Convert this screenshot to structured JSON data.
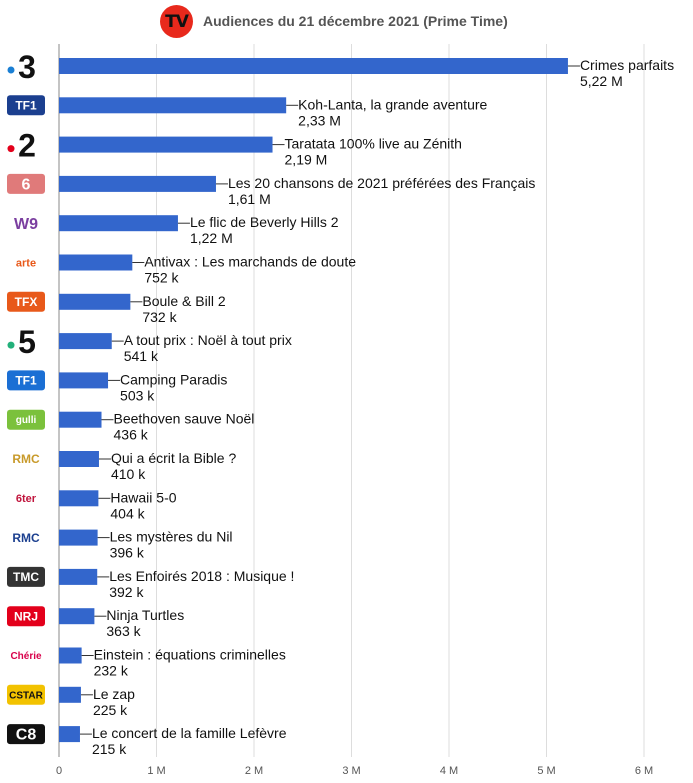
{
  "header": {
    "logo_text": "TV",
    "title": "Audiences du 21 décembre 2021 (Prime Time)"
  },
  "chart_data": {
    "type": "bar",
    "orientation": "horizontal",
    "title": "Audiences du 21 décembre 2021 (Prime Time)",
    "xlim": [
      0,
      6000000
    ],
    "x_ticks": [
      0,
      1000000,
      2000000,
      3000000,
      4000000,
      5000000,
      6000000
    ],
    "x_tick_labels": [
      "0",
      "1 M",
      "2 M",
      "3 M",
      "4 M",
      "5 M",
      "6 M"
    ],
    "grid": true,
    "bar_color": "#3366cc",
    "categories": [
      "France 3",
      "TF1",
      "France 2",
      "M6",
      "W9",
      "Arte",
      "TFX",
      "France 5",
      "TF1 Séries Films",
      "Gulli",
      "RMC Story",
      "6ter",
      "RMC Découverte",
      "TMC",
      "NRJ 12",
      "Chérie 25",
      "CStar",
      "C8"
    ],
    "programs": [
      "Crimes parfaits",
      "Koh-Lanta, la grande aventure",
      "Taratata 100% live au Zénith",
      "Les 20 chansons de 2021 préférées des Français",
      "Le flic de Beverly Hills 2",
      "Antivax : Les marchands de doute",
      "Boule & Bill 2",
      "A tout prix : Noël à tout prix",
      "Camping Paradis",
      "Beethoven sauve Noël",
      "Qui a écrit la Bible ?",
      "Hawaii 5-0",
      "Les mystères du Nil",
      "Les Enfoirés 2018 : Musique !",
      "Ninja Turtles",
      "Einstein : équations criminelles",
      "Le zap",
      "Le concert de la famille Lefèvre"
    ],
    "values": [
      5220000,
      2330000,
      2190000,
      1610000,
      1220000,
      752000,
      732000,
      541000,
      503000,
      436000,
      410000,
      404000,
      396000,
      392000,
      363000,
      232000,
      225000,
      215000
    ],
    "value_labels": [
      "5,22 M",
      "2,33 M",
      "2,19 M",
      "1,61 M",
      "1,22 M",
      "752 k",
      "732 k",
      "541 k",
      "503 k",
      "436 k",
      "410 k",
      "404 k",
      "396 k",
      "392 k",
      "363 k",
      "232 k",
      "225 k",
      "215 k"
    ],
    "channel_logos": [
      {
        "text": "•3",
        "color": "#111111",
        "accent": "#1a7fd4"
      },
      {
        "text": "TF1",
        "color": "#ffffff",
        "bg": "#1b3f8f"
      },
      {
        "text": "•2",
        "color": "#111111",
        "accent": "#e3001b"
      },
      {
        "text": "6",
        "color": "#ffffff",
        "bg": "#e07a7a"
      },
      {
        "text": "W9",
        "color": "#7b3fa0"
      },
      {
        "text": "arte",
        "color": "#e8591a"
      },
      {
        "text": "TFX",
        "color": "#ffffff",
        "bg": "#e8591a"
      },
      {
        "text": "•5",
        "color": "#111111",
        "accent": "#22b07a"
      },
      {
        "text": "TF1",
        "color": "#ffffff",
        "bg": "#1b6fd4"
      },
      {
        "text": "gulli",
        "color": "#ffffff",
        "bg": "#7bc13c"
      },
      {
        "text": "RMC",
        "color": "#c89a2a"
      },
      {
        "text": "6ter",
        "color": "#c0143c"
      },
      {
        "text": "RMC",
        "color": "#1b3f8f"
      },
      {
        "text": "TMC",
        "color": "#ffffff",
        "bg": "#333333"
      },
      {
        "text": "NRJ",
        "color": "#ffffff",
        "bg": "#e3001b"
      },
      {
        "text": "Chérie",
        "color": "#d8004a"
      },
      {
        "text": "CSTAR",
        "color": "#111111",
        "bg": "#f2c200"
      },
      {
        "text": "C8",
        "color": "#ffffff",
        "bg": "#111111"
      }
    ]
  }
}
